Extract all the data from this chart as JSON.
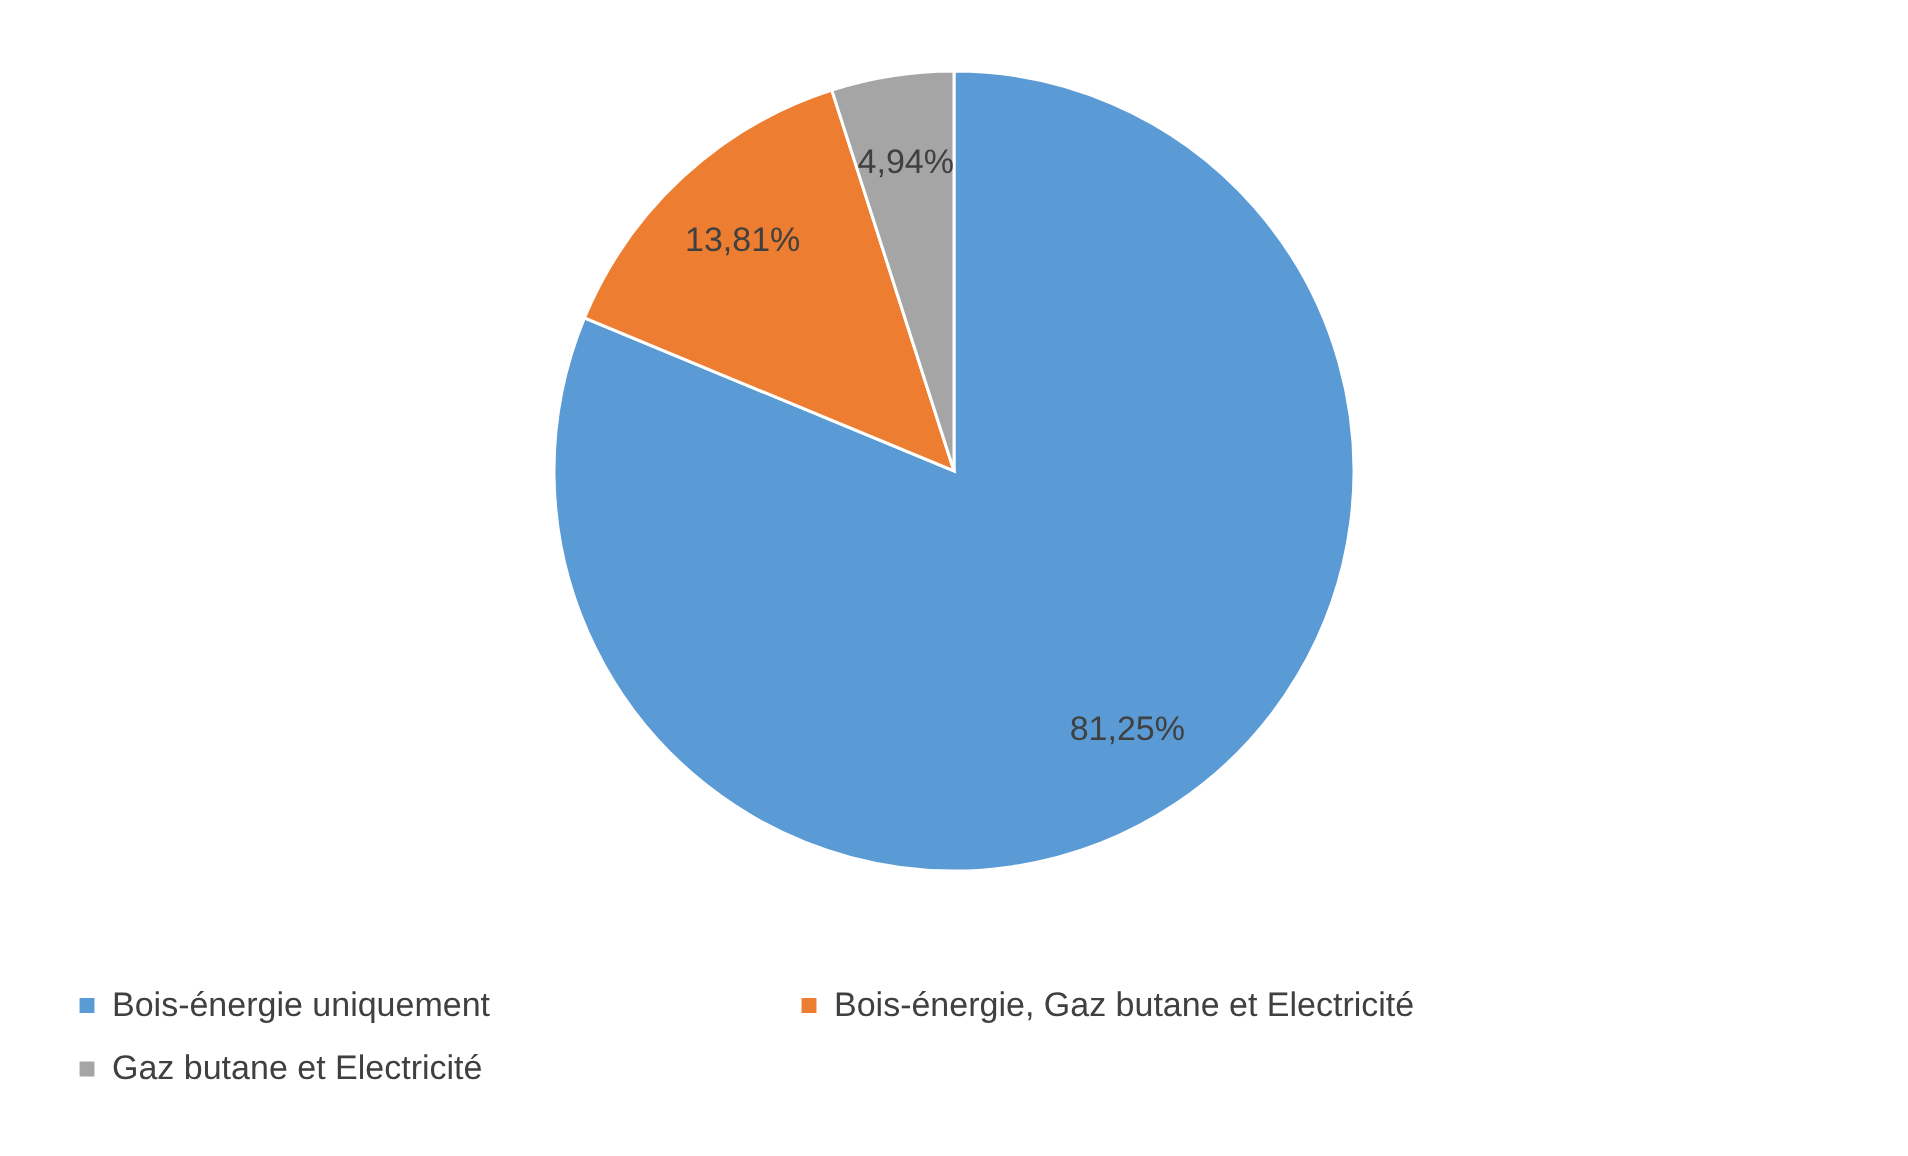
{
  "chart_data": {
    "type": "pie",
    "categories": [
      "Bois-énergie uniquement",
      "Bois-énergie, Gaz butane et Electricité",
      "Gaz butane et Electricité"
    ],
    "values": [
      81.25,
      13.81,
      4.94
    ],
    "colors": [
      "#5b9bd5",
      "#ed7d31",
      "#a5a5a5"
    ],
    "value_labels": [
      "81,25%",
      "13,81%",
      "4,94%"
    ],
    "legend": "bottom"
  }
}
